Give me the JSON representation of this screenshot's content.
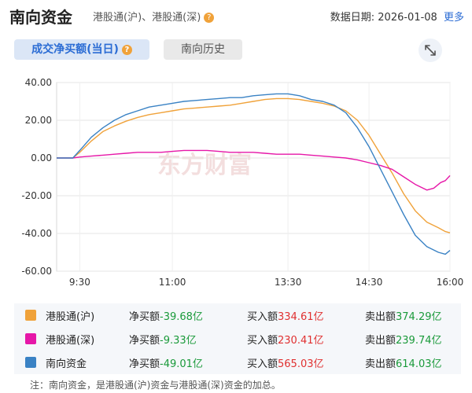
{
  "header": {
    "title": "南向资金",
    "subtitle": "港股通(沪)、港股通(深)",
    "help_glyph": "?",
    "date_label": "数据日期:",
    "date_value": "2026-01-08",
    "more_label": "更多"
  },
  "tabs": [
    {
      "label": "成交净买额(当日)",
      "active": true
    },
    {
      "label": "南向历史",
      "active": false
    }
  ],
  "watermark": "东方财富",
  "colors": {
    "hu": "#f0a23a",
    "shen": "#e617a8",
    "total": "#3a82c4",
    "neg": "#1a9a3a",
    "pos": "#e03030",
    "accent": "#2b6cd4"
  },
  "legend": [
    {
      "name": "港股通(沪)",
      "color": "#f0a23a",
      "net_label": "净买额",
      "net_value": "-39.68亿",
      "buy_label": "买入额",
      "buy_value": "334.61亿",
      "sell_label": "卖出额",
      "sell_value": "374.29亿"
    },
    {
      "name": "港股通(深)",
      "color": "#e617a8",
      "net_label": "净买额",
      "net_value": "-9.33亿",
      "buy_label": "买入额",
      "buy_value": "230.41亿",
      "sell_label": "卖出额",
      "sell_value": "239.74亿"
    },
    {
      "name": "南向资金",
      "color": "#3a82c4",
      "net_label": "净买额",
      "net_value": "-49.01亿",
      "buy_label": "买入额",
      "buy_value": "565.03亿",
      "sell_label": "卖出额",
      "sell_value": "614.03亿"
    }
  ],
  "note": "注：南向资金，是港股通(沪)资金与港股通(深)资金的加总。",
  "chart_data": {
    "type": "line",
    "y_ticks": [
      "40.00",
      "20.00",
      "0.00",
      "-20.00",
      "-40.00",
      "-60.00"
    ],
    "y_tick_values": [
      40,
      20,
      0,
      -20,
      -40,
      -60
    ],
    "x_ticks": [
      "9:30",
      "11:00",
      "13:30",
      "14:30",
      "16:00"
    ],
    "ylim": [
      -60,
      40
    ],
    "grid": true,
    "series": [
      {
        "name": "港股通(沪)",
        "color": "#f0a23a",
        "points": [
          [
            0,
            0
          ],
          [
            7,
            0
          ],
          [
            10,
            3
          ],
          [
            15,
            9
          ],
          [
            20,
            14
          ],
          [
            25,
            17
          ],
          [
            30,
            19.5
          ],
          [
            35,
            21.5
          ],
          [
            40,
            23
          ],
          [
            45,
            24
          ],
          [
            50,
            25
          ],
          [
            55,
            26
          ],
          [
            60,
            26.5
          ],
          [
            65,
            27
          ],
          [
            70,
            27.5
          ],
          [
            75,
            28
          ],
          [
            80,
            29
          ],
          [
            85,
            30
          ],
          [
            90,
            31
          ],
          [
            95,
            31.5
          ],
          [
            100,
            31.5
          ],
          [
            105,
            31
          ],
          [
            110,
            30
          ],
          [
            115,
            29
          ],
          [
            120,
            27.5
          ],
          [
            125,
            25
          ],
          [
            130,
            20
          ],
          [
            135,
            12
          ],
          [
            140,
            2
          ],
          [
            145,
            -8
          ],
          [
            150,
            -19
          ],
          [
            155,
            -28
          ],
          [
            160,
            -34
          ],
          [
            165,
            -37
          ],
          [
            168,
            -39
          ],
          [
            170,
            -39.68
          ]
        ]
      },
      {
        "name": "港股通(深)",
        "color": "#e617a8",
        "points": [
          [
            0,
            0
          ],
          [
            7,
            0
          ],
          [
            10,
            0.5
          ],
          [
            15,
            1
          ],
          [
            20,
            1.5
          ],
          [
            25,
            2
          ],
          [
            30,
            2.5
          ],
          [
            35,
            3
          ],
          [
            40,
            3
          ],
          [
            45,
            3
          ],
          [
            50,
            3.5
          ],
          [
            55,
            4
          ],
          [
            60,
            4
          ],
          [
            65,
            4
          ],
          [
            70,
            3.5
          ],
          [
            75,
            3
          ],
          [
            80,
            3
          ],
          [
            85,
            3
          ],
          [
            90,
            2.5
          ],
          [
            95,
            2
          ],
          [
            100,
            2
          ],
          [
            105,
            2
          ],
          [
            110,
            1.5
          ],
          [
            115,
            1
          ],
          [
            120,
            0.5
          ],
          [
            125,
            0
          ],
          [
            130,
            -1
          ],
          [
            135,
            -2.5
          ],
          [
            140,
            -4
          ],
          [
            145,
            -6
          ],
          [
            150,
            -10
          ],
          [
            155,
            -14
          ],
          [
            160,
            -17
          ],
          [
            163,
            -16
          ],
          [
            166,
            -13
          ],
          [
            168,
            -12
          ],
          [
            170,
            -9.33
          ]
        ]
      },
      {
        "name": "南向资金",
        "color": "#3a82c4",
        "points": [
          [
            0,
            0
          ],
          [
            7,
            0
          ],
          [
            10,
            4
          ],
          [
            15,
            11
          ],
          [
            20,
            16
          ],
          [
            25,
            20
          ],
          [
            30,
            23
          ],
          [
            35,
            25
          ],
          [
            40,
            27
          ],
          [
            45,
            28
          ],
          [
            50,
            29
          ],
          [
            55,
            30
          ],
          [
            60,
            30.5
          ],
          [
            65,
            31
          ],
          [
            70,
            31.5
          ],
          [
            75,
            32
          ],
          [
            80,
            32
          ],
          [
            85,
            33
          ],
          [
            90,
            33.5
          ],
          [
            95,
            34
          ],
          [
            100,
            34
          ],
          [
            105,
            33
          ],
          [
            110,
            31
          ],
          [
            115,
            30
          ],
          [
            120,
            28
          ],
          [
            125,
            24
          ],
          [
            130,
            16
          ],
          [
            135,
            6
          ],
          [
            140,
            -6
          ],
          [
            145,
            -18
          ],
          [
            150,
            -30
          ],
          [
            155,
            -41
          ],
          [
            160,
            -47
          ],
          [
            165,
            -50
          ],
          [
            168,
            -51
          ],
          [
            170,
            -49.01
          ]
        ]
      }
    ]
  }
}
